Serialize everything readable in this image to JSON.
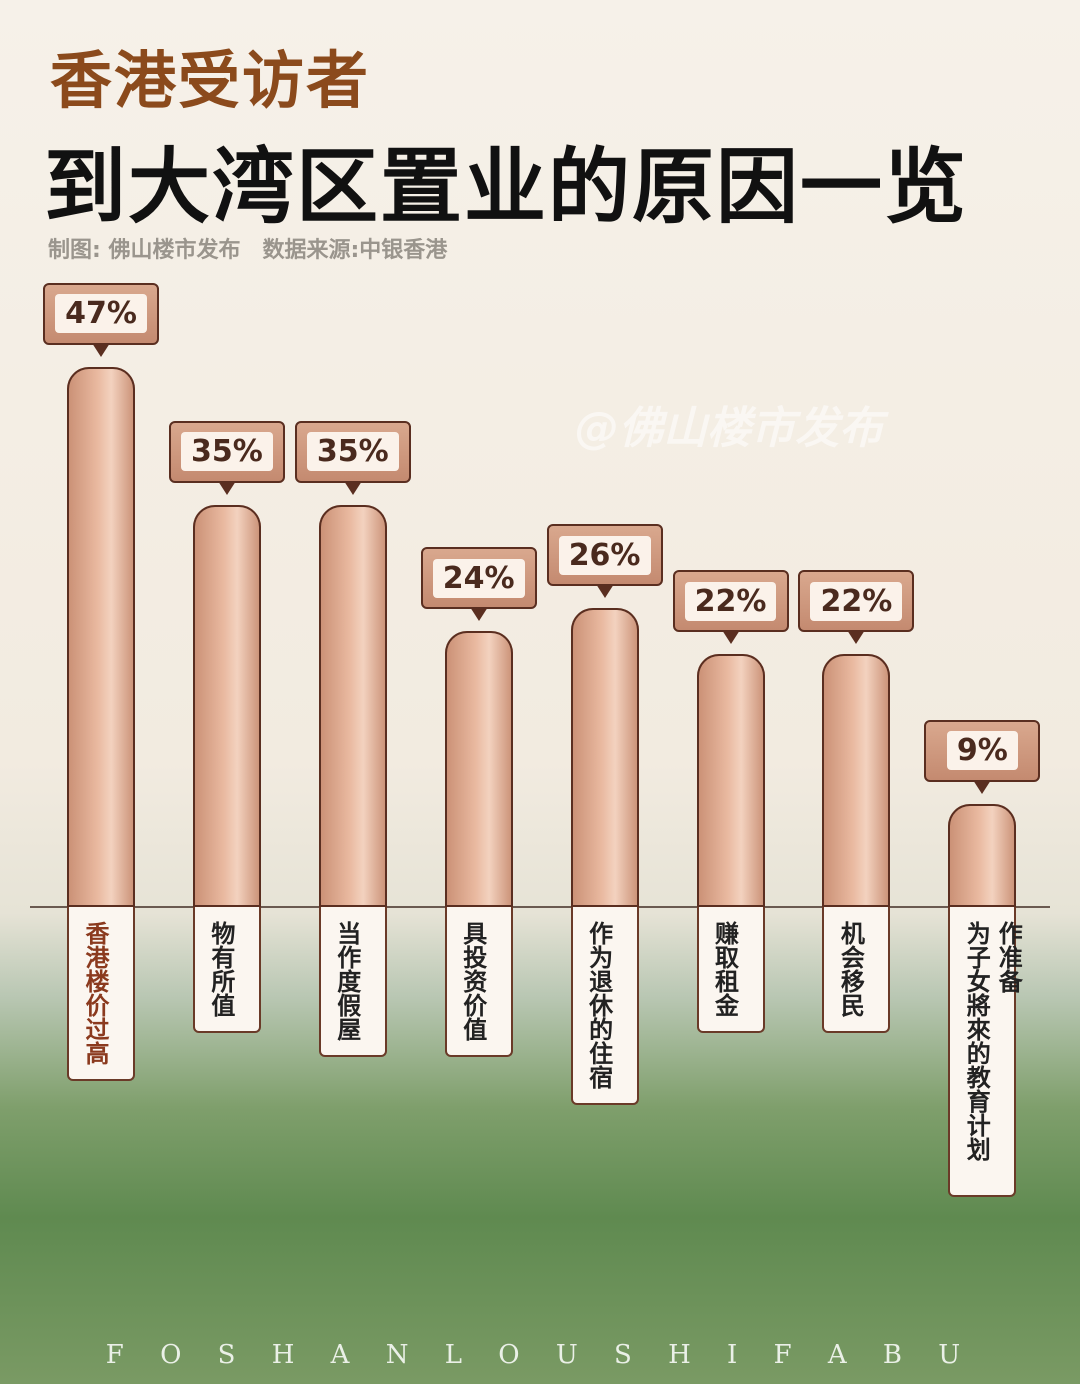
{
  "chart_data": {
    "type": "bar",
    "title": "香港受访者",
    "subtitle": "到大湾区置业的原因一览",
    "source": "制图: 佛山楼市发布　数据来源:中银香港",
    "watermark": "@佛山楼市发布",
    "footer": "F O S H A N L O U S H I F A B U",
    "categories": [
      "香港楼价过高",
      "物有所值",
      "当作度假屋",
      "具投资价值",
      "作为退休的住宿",
      "赚取租金",
      "机会移民",
      "为子女將來的教育计划作准备"
    ],
    "values": [
      47,
      35,
      35,
      24,
      26,
      22,
      22,
      9
    ],
    "value_labels": [
      "47%",
      "35%",
      "35%",
      "24%",
      "26%",
      "22%",
      "22%",
      "9%"
    ],
    "color": "#e9b9a0"
  }
}
